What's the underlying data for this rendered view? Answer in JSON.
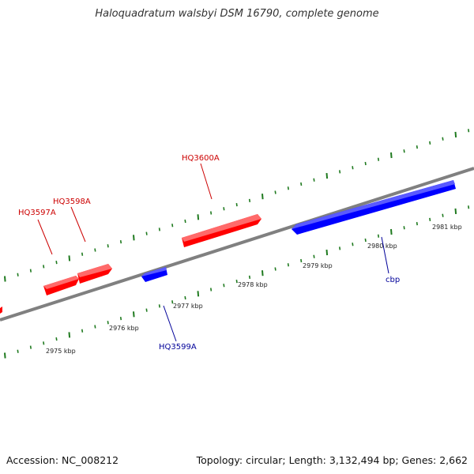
{
  "title": "Haloquadratum walsbyi DSM 16790, complete genome",
  "footer": {
    "accession": "Accession: NC_008212",
    "summary": "Topology: circular; Length: 3,132,494 bp; Genes: 2,662"
  },
  "colors": {
    "backbone": "#808080",
    "ticks": "#1f7a1f",
    "forward_gene": "#ff0000",
    "reverse_gene": "#0000ff",
    "forward_label": "#cc0000",
    "reverse_label": "#000099"
  },
  "scale_labels": [
    "2975 kbp",
    "2976 kbp",
    "2977 kbp",
    "2978 kbp",
    "2979 kbp",
    "2980 kbp",
    "2981 kbp"
  ],
  "genes": [
    {
      "name": "",
      "strand": "+"
    },
    {
      "name": "HQ3597A",
      "strand": "+"
    },
    {
      "name": "HQ3598A",
      "strand": "+"
    },
    {
      "name": "HQ3599A",
      "strand": "-"
    },
    {
      "name": "HQ3600A",
      "strand": "+"
    },
    {
      "name": "cbp",
      "strand": "-"
    }
  ]
}
